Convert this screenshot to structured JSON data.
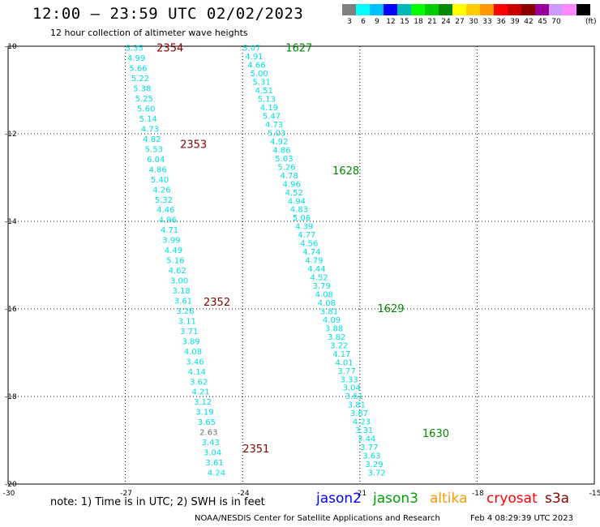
{
  "header": {
    "title": "12:00 — 23:59 UTC 02/02/2023",
    "subtitle": "12 hour collection of altimeter wave heights"
  },
  "colorbar": {
    "colors": [
      "#808080",
      "#00ffff",
      "#00bfff",
      "#0000ff",
      "#00b8b8",
      "#00ff00",
      "#00cc00",
      "#008800",
      "#ffff00",
      "#ffcc00",
      "#ff9900",
      "#ff0000",
      "#cc0000",
      "#880000",
      "#990099",
      "#cc99ff",
      "#ff88ff",
      "#000000"
    ],
    "ticks": [
      "3",
      "6",
      "9",
      "12",
      "15",
      "18",
      "21",
      "24",
      "27",
      "30",
      "33",
      "36",
      "39",
      "42",
      "45",
      "70"
    ],
    "unit": "(ft)"
  },
  "axes": {
    "x_ticks": [
      "-30",
      "-27",
      "-24",
      "-21",
      "-18",
      "-15"
    ],
    "y_ticks": [
      "-10",
      "-12",
      "-14",
      "-16",
      "-18",
      "-20"
    ]
  },
  "chart_data": {
    "type": "scatter",
    "x_unit": "degrees longitude",
    "y_unit": "degrees latitude",
    "xlim": [
      -30,
      -15
    ],
    "ylim": [
      -20,
      -10
    ],
    "grid": true,
    "tracks": [
      {
        "satellite": "cryosat",
        "color": "#00e0e0",
        "values": [
          "5.35",
          "4.99",
          "5.66",
          "5.22",
          "5.38",
          "5.25",
          "5.60",
          "5.14",
          "4.73",
          "4.82",
          "5.53",
          "6.04",
          "4.86",
          "5.40",
          "4.26",
          "5.32",
          "4.46",
          "4.96",
          "4.71",
          "3.99",
          "4.49",
          "5.16",
          "4.62",
          "3.00",
          "3.18",
          "3.61",
          "3.26",
          "3.11",
          "3.71",
          "3.89",
          "4.08",
          "3.46",
          "4.14",
          "3.62",
          "4.21",
          "3.12",
          "3.19",
          "3.65",
          "2.63",
          "3.43",
          "3.04",
          "3.61",
          "4.24"
        ],
        "labels": [
          "2354",
          "2353",
          "2352",
          "2351"
        ]
      },
      {
        "satellite": "jason3",
        "color": "#00e0e0",
        "values": [
          "5.07",
          "4.91",
          "4.66",
          "5.00",
          "5.31",
          "4.51",
          "5.13",
          "4.19",
          "5.47",
          "4.73",
          "5.03",
          "4.92",
          "4.86",
          "5.03",
          "5.26",
          "4.78",
          "4.96",
          "4.52",
          "4.94",
          "4.83",
          "5.06",
          "4.39",
          "4.77",
          "4.56",
          "4.74",
          "4.79",
          "4.44",
          "4.52",
          "3.79",
          "4.08",
          "4.08",
          "3.81",
          "4.09",
          "3.88",
          "3.82",
          "3.22",
          "4.17",
          "4.01",
          "3.77",
          "3.33",
          "3.04",
          "3.61",
          "3.81",
          "3.87",
          "4.23",
          "3.31",
          "3.44",
          "3.77",
          "3.63",
          "3.29",
          "3.72"
        ],
        "labels": [
          "1627",
          "1628",
          "1629",
          "1630"
        ]
      }
    ]
  },
  "legend": {
    "note": "note: 1) Time is in UTC; 2) SWH is in feet",
    "satellites": [
      {
        "name": "jason2",
        "color": "#0000ff"
      },
      {
        "name": "jason3",
        "color": "#00a000"
      },
      {
        "name": "altika",
        "color": "#ff9900"
      },
      {
        "name": "cryosat",
        "color": "#ff0000"
      },
      {
        "name": "s3a",
        "color": "#880000"
      }
    ]
  },
  "footer": {
    "credit": "NOAA/NESDIS Center for Satellite Applications and Research",
    "timestamp": "Feb  4 08:29:39 UTC 2023"
  }
}
